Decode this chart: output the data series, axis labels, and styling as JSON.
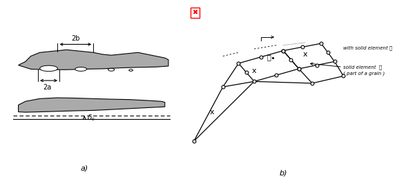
{
  "fig_width": 5.88,
  "fig_height": 2.63,
  "dpi": 100,
  "bg_color": "#ffffff",
  "panel_a_label": "a)",
  "panel_b_label": "b)",
  "grain_color": "#aaaaaa",
  "grain_edge_color": "#000000",
  "annotation_with_solid": "with solid element Ⓤ",
  "annotation_solid_element": "solid element  Ⓢ",
  "annotation_part_of_grain": "( part of a grain )"
}
